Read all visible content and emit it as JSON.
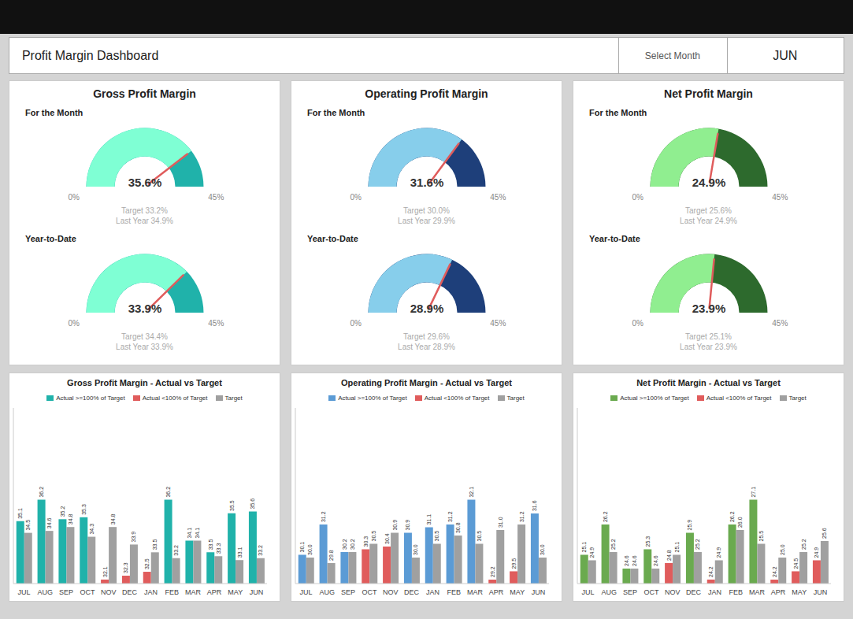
{
  "title": "Profit Margin Dashboard",
  "annotations": [
    "Select Month",
    "JUN"
  ],
  "chart_data": [
    {
      "type": "gauge",
      "title": "Gross Profit Margin",
      "ylim": [
        0,
        45
      ],
      "yticks": [
        {
          "value": 0,
          "label": "0%"
        },
        {
          "value": 45,
          "label": "45%"
        }
      ],
      "colors": [
        "#7fffd4",
        "#20b2aa"
      ],
      "gauges": [
        {
          "subtitle": "For the Month",
          "values": [
            35.6
          ],
          "value_labels": [
            "35.6%"
          ],
          "annotations": [
            "Target 33.2%",
            "Last Year 34.9%"
          ]
        },
        {
          "subtitle": "Year-to-Date",
          "values": [
            33.9
          ],
          "value_labels": [
            "33.9%"
          ],
          "annotations": [
            "Target 34.4%",
            "Last Year 33.9%"
          ]
        }
      ]
    },
    {
      "type": "gauge",
      "title": "Operating Profit Margin",
      "ylim": [
        0,
        45
      ],
      "yticks": [
        {
          "value": 0,
          "label": "0%"
        },
        {
          "value": 45,
          "label": "45%"
        }
      ],
      "colors": [
        "#87ceeb",
        "#1e3f7a"
      ],
      "gauges": [
        {
          "subtitle": "For the Month",
          "values": [
            31.6
          ],
          "value_labels": [
            "31.6%"
          ],
          "annotations": [
            "Target 30.0%",
            "Last Year 29.9%"
          ]
        },
        {
          "subtitle": "Year-to-Date",
          "values": [
            28.9
          ],
          "value_labels": [
            "28.9%"
          ],
          "annotations": [
            "Target 29.6%",
            "Last Year 28.9%"
          ]
        }
      ]
    },
    {
      "type": "gauge",
      "title": "Net Profit Margin",
      "ylim": [
        0,
        45
      ],
      "yticks": [
        {
          "value": 0,
          "label": "0%"
        },
        {
          "value": 45,
          "label": "45%"
        }
      ],
      "colors": [
        "#90ee90",
        "#2d6a2d"
      ],
      "gauges": [
        {
          "subtitle": "For the Month",
          "values": [
            24.9
          ],
          "value_labels": [
            "24.9%"
          ],
          "annotations": [
            "Target 25.6%",
            "Last Year 24.9%"
          ]
        },
        {
          "subtitle": "Year-to-Date",
          "values": [
            23.9
          ],
          "value_labels": [
            "23.9%"
          ],
          "annotations": [
            "Target 25.1%",
            "Last Year 23.9%"
          ]
        }
      ]
    },
    {
      "type": "bar",
      "title": "Gross Profit Margin - Actual vs Target",
      "categories": [
        "JUL",
        "AUG",
        "SEP",
        "OCT",
        "NOV",
        "DEC",
        "JAN",
        "FEB",
        "MAR",
        "APR",
        "MAY",
        "JUN"
      ],
      "series": [
        {
          "name": "Actual >=100% of Target",
          "color": "#20b2aa",
          "values": [
            35.1,
            36.2,
            35.2,
            35.3,
            null,
            null,
            null,
            36.2,
            34.1,
            33.5,
            35.5,
            35.6
          ],
          "value_labels": [
            "35.1",
            "36.2",
            "35.2",
            "35.3",
            null,
            null,
            null,
            "36.2",
            "34.1",
            "33.5",
            "35.5",
            "35.6"
          ]
        },
        {
          "name": "Actual <100% of Target",
          "color": "#e05c5c",
          "values": [
            null,
            null,
            null,
            null,
            32.1,
            32.3,
            32.5,
            null,
            null,
            null,
            null,
            null
          ],
          "value_labels": [
            null,
            null,
            null,
            null,
            "32.1",
            "32.3",
            "32.5",
            null,
            null,
            null,
            null,
            null
          ]
        },
        {
          "name": "Target",
          "color": "#a0a0a0",
          "values": [
            34.5,
            34.6,
            34.8,
            34.3,
            34.8,
            33.9,
            33.5,
            33.2,
            34.1,
            33.3,
            33.1,
            33.2
          ],
          "value_labels": [
            "34.5",
            "34.6",
            "34.8",
            "34.3",
            "34.8",
            "33.9",
            "33.5",
            "33.2",
            "34.1",
            "33.3",
            "33.1",
            "33.2"
          ]
        }
      ],
      "ylim": [
        31.895,
        40.915
      ],
      "data_labels": true,
      "tick_labels": "x"
    },
    {
      "type": "bar",
      "title": "Operating Profit Margin - Actual vs Target",
      "categories": [
        "JUL",
        "AUG",
        "SEP",
        "OCT",
        "NOV",
        "DEC",
        "JAN",
        "FEB",
        "MAR",
        "APR",
        "MAY",
        "JUN"
      ],
      "series": [
        {
          "name": "Actual >=100% of Target",
          "color": "#5b9bd5",
          "values": [
            30.1,
            31.2,
            30.2,
            null,
            null,
            30.9,
            31.1,
            31.2,
            32.1,
            null,
            null,
            31.6
          ],
          "value_labels": [
            "30.1",
            "31.2",
            "30.2",
            null,
            null,
            "30.9",
            "31.1",
            "31.2",
            "32.1",
            null,
            null,
            "31.6"
          ]
        },
        {
          "name": "Actual <100% of Target",
          "color": "#e05c5c",
          "values": [
            null,
            null,
            null,
            30.3,
            30.4,
            null,
            null,
            null,
            null,
            29.2,
            29.5,
            null
          ],
          "value_labels": [
            null,
            null,
            null,
            "30.3",
            "30.4",
            null,
            null,
            null,
            null,
            "29.2",
            "29.5",
            null
          ]
        },
        {
          "name": "Target",
          "color": "#a0a0a0",
          "values": [
            30.0,
            29.8,
            30.2,
            30.5,
            30.9,
            30.0,
            30.5,
            30.8,
            30.5,
            31.0,
            31.2,
            30.0
          ],
          "value_labels": [
            "30.0",
            "29.8",
            "30.2",
            "30.5",
            "30.9",
            "30.0",
            "30.5",
            "30.8",
            "30.5",
            "31.0",
            "31.2",
            "30.0"
          ]
        }
      ],
      "ylim": [
        29.055,
        35.435
      ],
      "data_labels": true,
      "tick_labels": "x"
    },
    {
      "type": "bar",
      "title": "Net Profit Margin - Actual vs Target",
      "categories": [
        "JUL",
        "AUG",
        "SEP",
        "OCT",
        "NOV",
        "DEC",
        "JAN",
        "FEB",
        "MAR",
        "APR",
        "MAY",
        "JUN"
      ],
      "series": [
        {
          "name": "Actual >=100% of Target",
          "color": "#6aaa4f",
          "values": [
            25.1,
            26.2,
            24.6,
            25.3,
            null,
            25.9,
            null,
            26.2,
            27.1,
            null,
            null,
            null
          ],
          "value_labels": [
            "25.1",
            "26.2",
            "24.6",
            "25.3",
            null,
            "25.9",
            null,
            "26.2",
            "27.1",
            null,
            null,
            null
          ]
        },
        {
          "name": "Actual <100% of Target",
          "color": "#e05c5c",
          "values": [
            null,
            null,
            null,
            null,
            24.8,
            null,
            24.2,
            null,
            null,
            24.2,
            24.5,
            24.9
          ],
          "value_labels": [
            null,
            null,
            null,
            null,
            "24.8",
            null,
            "24.2",
            null,
            null,
            "24.2",
            "24.5",
            "24.9"
          ]
        },
        {
          "name": "Target",
          "color": "#a0a0a0",
          "values": [
            24.9,
            25.2,
            24.6,
            24.6,
            25.1,
            25.2,
            24.9,
            26.0,
            25.5,
            25.0,
            25.2,
            25.6
          ],
          "value_labels": [
            "24.9",
            "25.2",
            "24.6",
            "24.6",
            "25.1",
            "25.2",
            "24.9",
            "26.0",
            "25.5",
            "25.0",
            "25.2",
            "25.6"
          ]
        }
      ],
      "ylim": [
        24.055,
        30.435
      ],
      "data_labels": true,
      "tick_labels": "x"
    }
  ]
}
